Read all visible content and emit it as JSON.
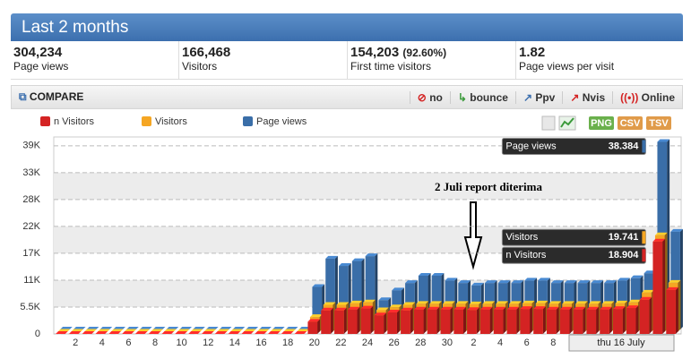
{
  "header": {
    "title": "Last 2 months"
  },
  "stats": [
    {
      "value": "304,234",
      "label": "Page views"
    },
    {
      "value": "166,468",
      "label": "Visitors"
    },
    {
      "value": "154,203",
      "percent": "(92.60%)",
      "label": "First time visitors"
    },
    {
      "value": "1.82",
      "label": "Page views per visit"
    }
  ],
  "toolbar": {
    "compare": "COMPARE",
    "filters": [
      "no",
      "bounce",
      "Ppv",
      "Nvis",
      "Online"
    ],
    "exports": [
      "PNG",
      "CSV",
      "TSV"
    ]
  },
  "chart_data": {
    "type": "bar",
    "categories": [
      null,
      "2",
      null,
      "4",
      null,
      "6",
      null,
      "8",
      null,
      "10",
      null,
      "12",
      null,
      "14",
      null,
      "16",
      null,
      "18",
      null,
      "20",
      null,
      "22",
      null,
      "24",
      null,
      "26",
      null,
      "28",
      null,
      "30",
      null,
      "2",
      null,
      "4",
      null,
      "6",
      null,
      "8",
      null,
      null,
      null,
      null,
      null,
      null,
      null,
      null,
      null
    ],
    "x_highlight_label": "thu 16 July",
    "series": [
      {
        "name": "n Visitors",
        "color": "#d42323",
        "values": [
          0,
          0,
          0,
          0,
          0,
          0,
          0,
          0,
          0,
          0,
          0,
          0,
          0,
          0,
          0,
          0,
          0,
          0,
          0,
          2500,
          4800,
          4800,
          5000,
          5200,
          3800,
          4400,
          4800,
          5000,
          5000,
          5000,
          5000,
          4900,
          5000,
          5000,
          5000,
          5100,
          5100,
          5000,
          5000,
          5000,
          5000,
          5000,
          5100,
          5300,
          7000,
          18904,
          9000
        ],
        "value_labels": [
          null,
          null,
          null,
          null,
          null,
          null,
          null,
          null,
          null,
          null,
          null,
          null,
          null,
          null,
          null,
          null,
          null,
          null,
          null,
          null,
          null,
          null,
          null,
          null,
          null,
          null,
          null,
          null,
          null,
          null,
          null,
          null,
          null,
          null,
          null,
          null,
          null,
          null,
          null,
          null,
          null,
          null,
          null,
          null,
          null,
          "18.904",
          null
        ]
      },
      {
        "name": "Visitors",
        "color": "#f5a623",
        "values": [
          0,
          0,
          0,
          0,
          0,
          0,
          0,
          0,
          0,
          0,
          0,
          0,
          0,
          0,
          0,
          0,
          0,
          0,
          0,
          3000,
          5500,
          5500,
          5800,
          6000,
          4400,
          5000,
          5500,
          5700,
          5700,
          5700,
          5700,
          5600,
          5700,
          5700,
          5700,
          5800,
          5800,
          5700,
          5700,
          5700,
          5700,
          5700,
          5800,
          6000,
          8000,
          19741,
          10000
        ],
        "value_labels": [
          null,
          null,
          null,
          null,
          null,
          null,
          null,
          null,
          null,
          null,
          null,
          null,
          null,
          null,
          null,
          null,
          null,
          null,
          null,
          null,
          null,
          null,
          null,
          null,
          null,
          null,
          null,
          null,
          null,
          null,
          null,
          null,
          null,
          null,
          null,
          null,
          null,
          null,
          null,
          null,
          null,
          null,
          null,
          null,
          null,
          "19.741",
          null
        ]
      },
      {
        "name": "Page views",
        "color": "#3a6ea8",
        "values": [
          0,
          0,
          0,
          0,
          0,
          0,
          0,
          0,
          0,
          0,
          0,
          0,
          0,
          0,
          0,
          0,
          0,
          0,
          0,
          8700,
          14500,
          13000,
          14000,
          15000,
          6000,
          8000,
          9500,
          11000,
          11000,
          10000,
          9500,
          9000,
          9500,
          9500,
          9500,
          10000,
          10000,
          9500,
          9500,
          9500,
          9500,
          9500,
          10000,
          10500,
          11500,
          38384,
          20000
        ],
        "value_labels": [
          null,
          null,
          null,
          null,
          null,
          null,
          null,
          null,
          null,
          null,
          null,
          null,
          null,
          null,
          null,
          null,
          null,
          null,
          null,
          null,
          null,
          null,
          null,
          null,
          null,
          null,
          null,
          null,
          null,
          null,
          null,
          null,
          null,
          null,
          null,
          null,
          null,
          null,
          null,
          null,
          null,
          null,
          null,
          null,
          null,
          "38.384",
          null
        ]
      }
    ],
    "ylim": [
      0,
      40300
    ],
    "yticks": [
      0,
      {
        "value": 5500,
        "label": "5.5K"
      },
      {
        "value": 11000,
        "label": "11K"
      },
      {
        "value": 16500,
        "label": "17K"
      },
      {
        "value": 22000,
        "label": "22K"
      },
      {
        "value": 27500,
        "label": "28K"
      },
      {
        "value": 33000,
        "label": "33K"
      },
      {
        "value": 38500,
        "label": "39K"
      }
    ],
    "grid": true,
    "annotations": [
      {
        "text": "2 Juli report diterima"
      }
    ]
  }
}
